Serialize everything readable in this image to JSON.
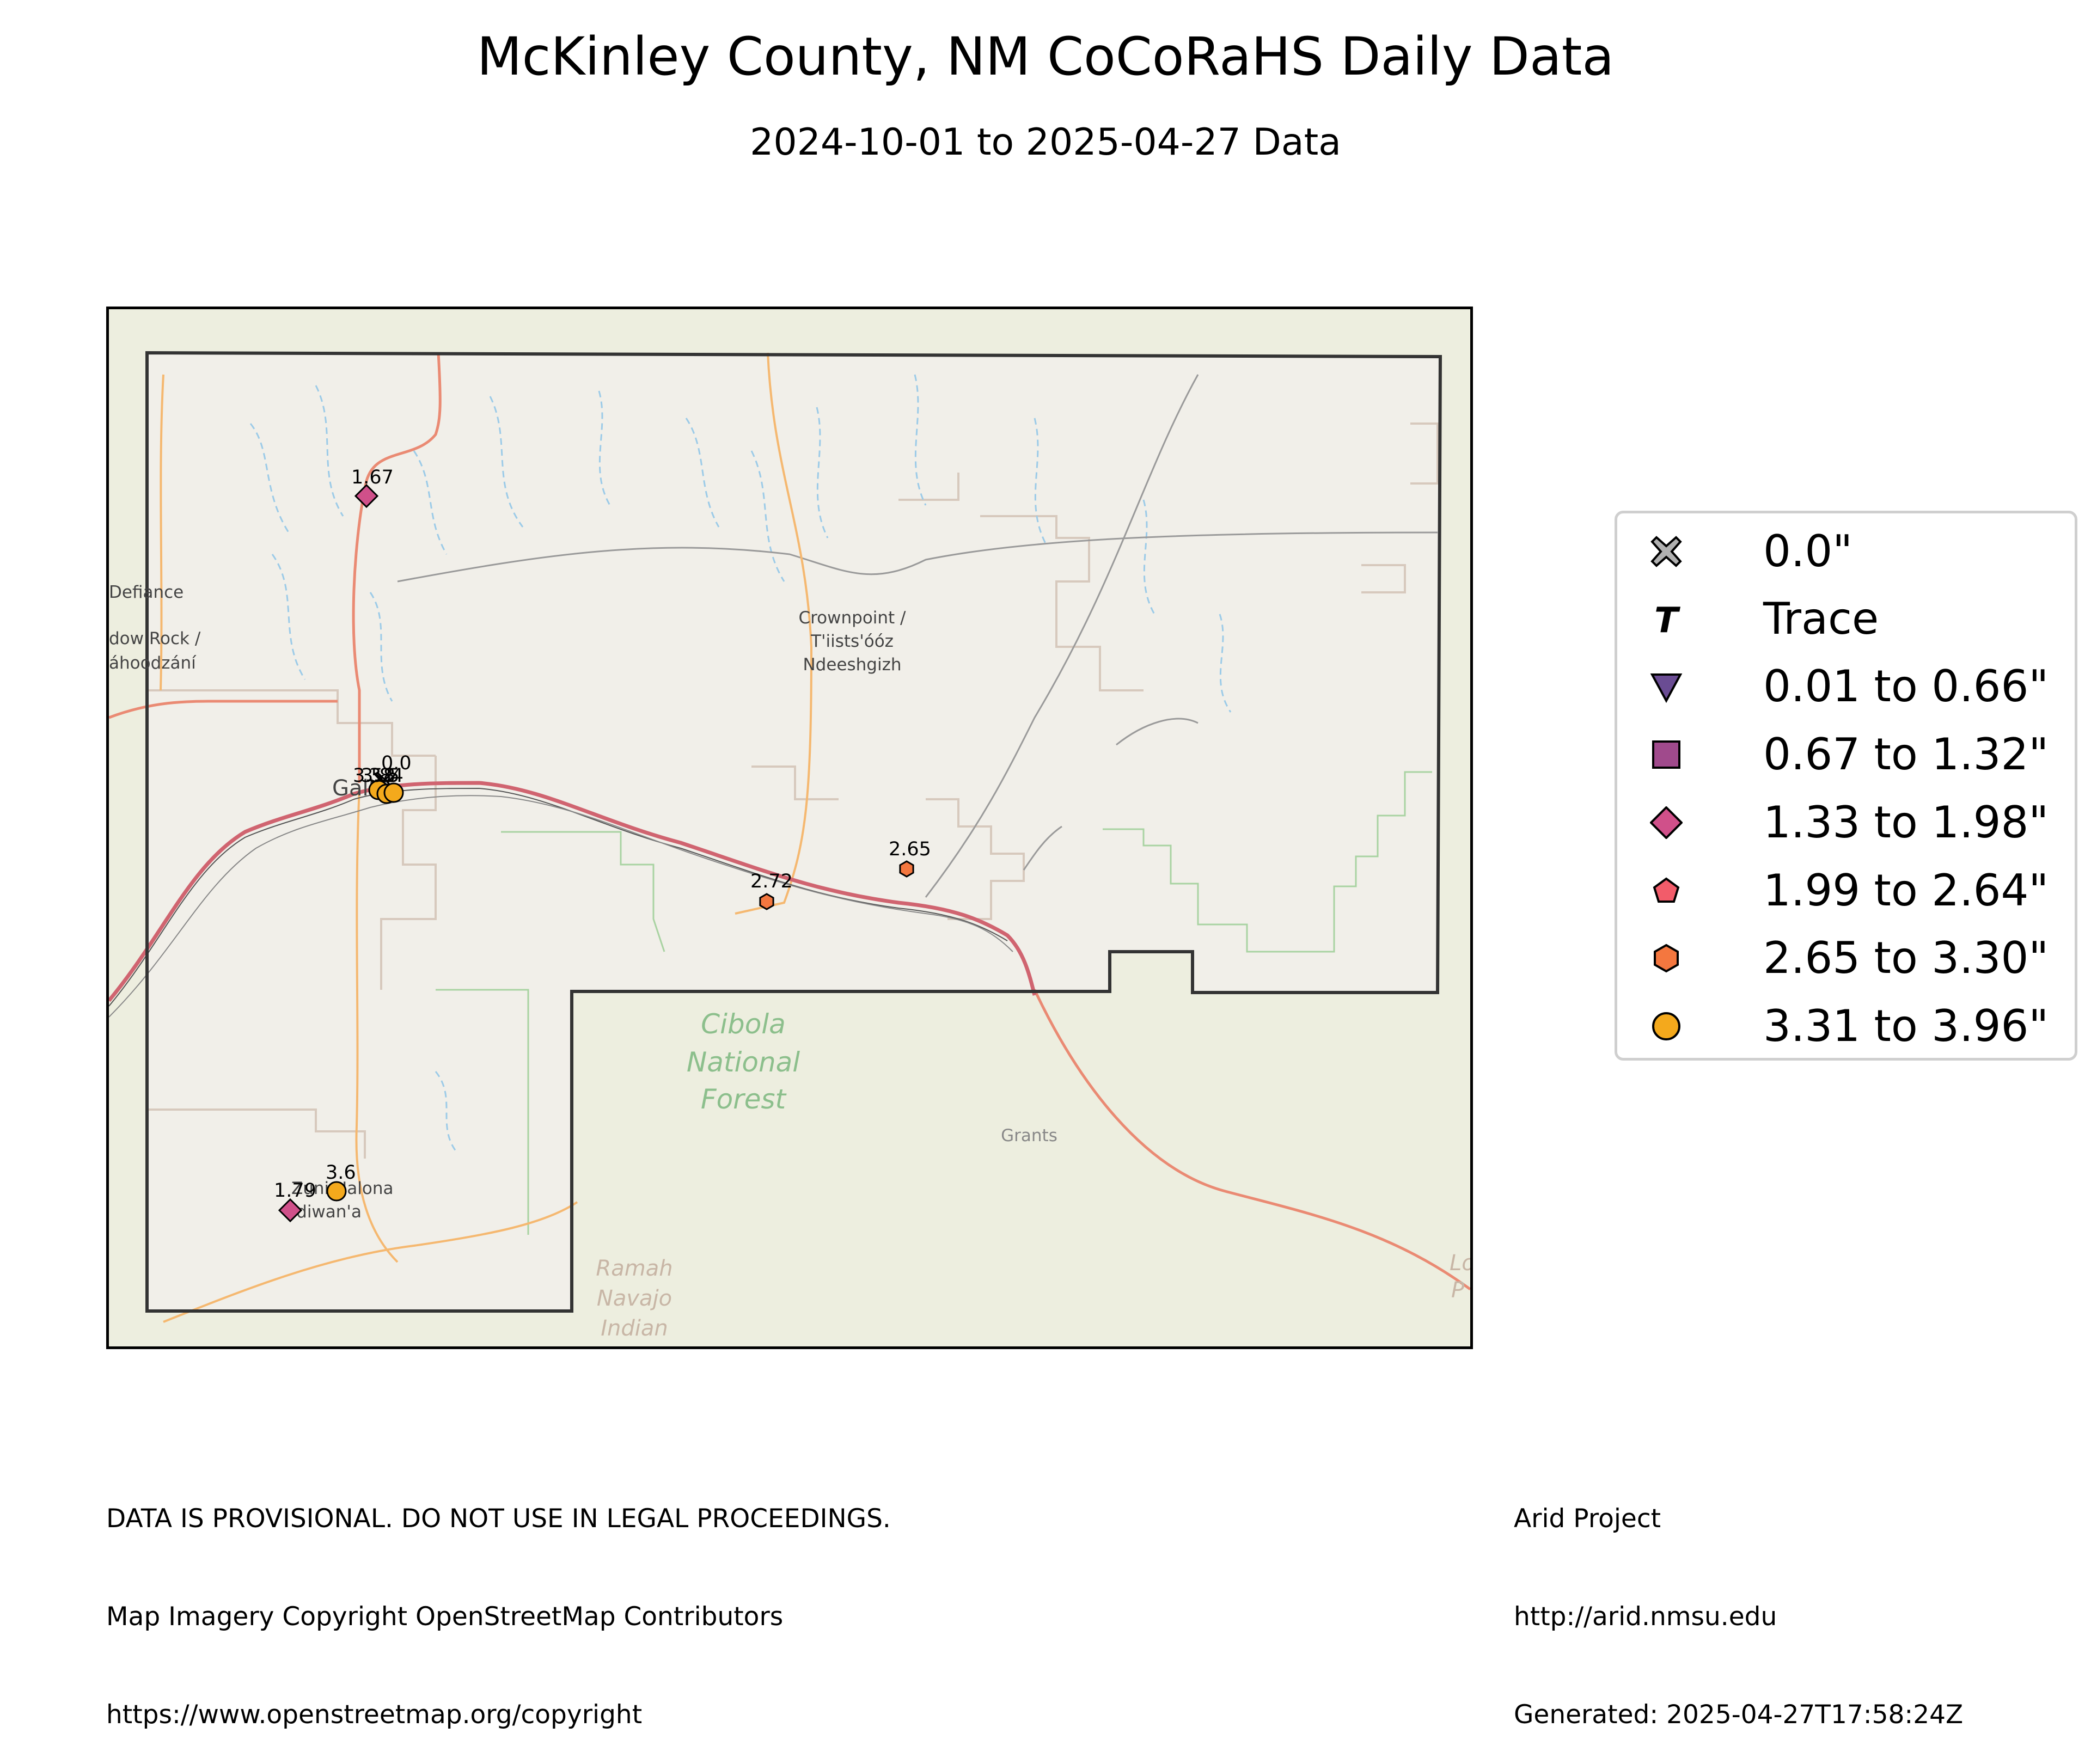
{
  "title": "McKinley County, NM CoCoRaHS Daily Data",
  "subtitle": "2024-10-01 to 2025-04-27 Data",
  "map": {
    "place_labels": {
      "defiance": "Defiance",
      "window_rock_1": "dow Rock /",
      "window_rock_2": "áhoodzání",
      "crownpoint_1": "Crownpoint /",
      "crownpoint_2": "T'iists'óóz",
      "crownpoint_3": "Ndeeshgizh",
      "gallup": "Gallup",
      "grants": "Grants",
      "zuni_1": "Zuni Halona",
      "zuni_2": "Idiwan'a",
      "forest_1": "Cibola",
      "forest_2": "National",
      "forest_3": "Forest",
      "ramah_1": "Ramah",
      "ramah_2": "Navajo",
      "ramah_3": "Indian",
      "edge_1": "Lo",
      "edge_2": "P"
    },
    "stations": [
      {
        "label": "1.67",
        "value": 1.67,
        "category": "1.33 to 1.98\"",
        "marker": "diamond",
        "color": "#d0508a"
      },
      {
        "label": "0.0",
        "value": 0.0,
        "category": "0.0\"",
        "marker": "x",
        "color": "#b0b0b0"
      },
      {
        "label": "3.58",
        "value": 3.58,
        "category": "3.31 to 3.96\"",
        "marker": "circle",
        "color": "#f4a91c"
      },
      {
        "label": "3.84",
        "value": 3.84,
        "category": "3.31 to 3.96\"",
        "marker": "circle",
        "color": "#f4a91c"
      },
      {
        "label": "3.5",
        "value": 3.5,
        "category": "3.31 to 3.96\"",
        "marker": "circle",
        "color": "#f4a91c"
      },
      {
        "label": "2.72",
        "value": 2.72,
        "category": "2.65 to 3.30\"",
        "marker": "hexagon",
        "color": "#f4773f"
      },
      {
        "label": "2.65",
        "value": 2.65,
        "category": "2.65 to 3.30\"",
        "marker": "hexagon",
        "color": "#f4773f"
      },
      {
        "label": "3.6",
        "value": 3.6,
        "category": "3.31 to 3.96\"",
        "marker": "circle",
        "color": "#f4a91c"
      },
      {
        "label": "1.79",
        "value": 1.79,
        "category": "1.33 to 1.98\"",
        "marker": "diamond",
        "color": "#d0508a"
      }
    ]
  },
  "legend": [
    {
      "label": "0.0\"",
      "marker": "x-icon",
      "color": "#b0b0b0"
    },
    {
      "label": "Trace",
      "marker": "t-icon",
      "color": "#000000"
    },
    {
      "label": "0.01 to 0.66\"",
      "marker": "triangle-down-icon",
      "color": "#6a4c93"
    },
    {
      "label": "0.67 to 1.32\"",
      "marker": "square-icon",
      "color": "#a04a8c"
    },
    {
      "label": "1.33 to 1.98\"",
      "marker": "diamond-icon",
      "color": "#d0508a"
    },
    {
      "label": "1.99 to 2.64\"",
      "marker": "pentagon-icon",
      "color": "#f25c6a"
    },
    {
      "label": "2.65 to 3.30\"",
      "marker": "hexagon-icon",
      "color": "#f4773f"
    },
    {
      "label": "3.31 to 3.96\"",
      "marker": "circle-icon",
      "color": "#f4a91c"
    }
  ],
  "footer": {
    "left": [
      "DATA IS PROVISIONAL. DO NOT USE IN LEGAL PROCEEDINGS.",
      "Map Imagery Copyright OpenStreetMap Contributors",
      "https://www.openstreetmap.org/copyright"
    ],
    "right": [
      "Arid Project",
      "http://arid.nmsu.edu",
      "Generated: 2025-04-27T17:58:24Z"
    ]
  }
}
